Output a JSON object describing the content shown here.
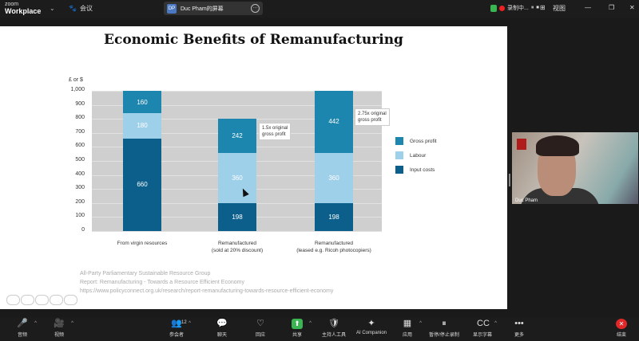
{
  "app": {
    "brand_top": "zoom",
    "brand_name": "Workplace",
    "meeting_label": "会议",
    "share_label": "Duc Pham的屏幕",
    "share_initials": "DP",
    "recording_label": "录制中...",
    "view_label": "视图"
  },
  "slide": {
    "title": "Economic Benefits of Remanufacturing",
    "source_lines": [
      "All-Party Parliamentary Sustainable Resource Group",
      "Report: Remanufacturing - Towards a Resource Efficient Economy",
      "https://www.policyconnect.org.uk/research/report-remanufacturing-towards-resource-efficient-economy"
    ]
  },
  "chart_data": {
    "type": "bar",
    "stacked": true,
    "ylabel": "£ or $",
    "ylim": [
      0,
      1000
    ],
    "yticks": [
      "1,000",
      "900",
      "800",
      "700",
      "600",
      "500",
      "400",
      "300",
      "200",
      "100",
      "0"
    ],
    "categories": [
      "From virgin resources",
      "Remanufactured\n(sold at 20% discount)",
      "Remanufactured\n(leased e.g. Ricoh photocopiers)"
    ],
    "series": [
      {
        "name": "Input costs",
        "color": "#0b5f8a",
        "values": [
          660,
          198,
          198
        ]
      },
      {
        "name": "Labour",
        "color": "#9fd0ea",
        "values": [
          180,
          360,
          360
        ]
      },
      {
        "name": "Gross profit",
        "color": "#1d86ae",
        "values": [
          160,
          242,
          442
        ]
      }
    ],
    "annotations": [
      "1.5x original\ngross profit",
      "2.75x original\ngross profit"
    ],
    "legend": [
      "Gross profit",
      "Labour",
      "Input costs"
    ],
    "grid": true
  },
  "participant": {
    "name": "Duc Pham"
  },
  "toolbar": {
    "items": [
      {
        "label": "音频",
        "icon": "🎤"
      },
      {
        "label": "视频",
        "icon": "🎥"
      },
      {
        "label": "参会者",
        "icon": "👥",
        "count": "12"
      },
      {
        "label": "聊天",
        "icon": "💬"
      },
      {
        "label": "回应",
        "icon": "♡"
      },
      {
        "label": "共享",
        "icon": "⬆"
      },
      {
        "label": "主持人工具",
        "icon": "🛡"
      },
      {
        "label": "AI Companion",
        "icon": "✦"
      },
      {
        "label": "应用",
        "icon": "▦"
      },
      {
        "label": "暂停/停止录制",
        "icon": "⏸"
      },
      {
        "label": "显示字幕",
        "icon": "CC"
      },
      {
        "label": "更多",
        "icon": "•••"
      },
      {
        "label": "结束",
        "icon": "✕"
      }
    ]
  },
  "colors": {
    "gross_profit": "#1d86ae",
    "labour": "#9fd0ea",
    "input_costs": "#0b5f8a",
    "end": "#e02828",
    "share": "#3bb552"
  }
}
